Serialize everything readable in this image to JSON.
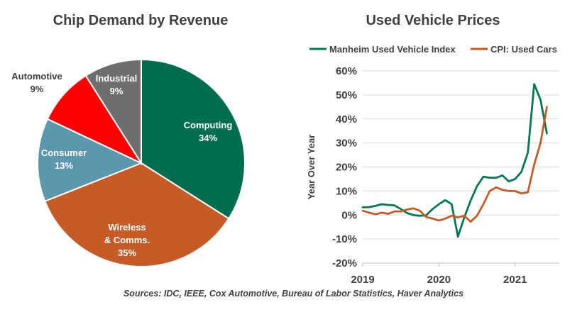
{
  "source": "Sources: IDC, IEEE, Cox Automotive, Bureau of Labor Statistics, Haver Analytics",
  "chart_data": [
    {
      "type": "pie",
      "title": "Chip Demand by Revenue",
      "slices": [
        {
          "label": "Computing",
          "pct_label": "34%",
          "value": 34,
          "color": "#006E4E"
        },
        {
          "label": "Wireless\n& Comms.",
          "pct_label": "35%",
          "value": 35,
          "color": "#C65B28"
        },
        {
          "label": "Consumer",
          "pct_label": "13%",
          "value": 13,
          "color": "#5B97AD"
        },
        {
          "label": "Automotive",
          "pct_label": "9%",
          "value": 9,
          "color": "#FF0000"
        },
        {
          "label": "Industrial",
          "pct_label": "9%",
          "value": 9,
          "color": "#6E6E6E"
        }
      ]
    },
    {
      "type": "line",
      "title": "Used Vehicle Prices",
      "ylabel": "Year Over Year",
      "ylim": [
        -20,
        60
      ],
      "yticks": [
        -20,
        -10,
        0,
        10,
        20,
        30,
        40,
        50,
        60
      ],
      "ytick_labels": [
        "-20%",
        "-10%",
        "0%",
        "10%",
        "20%",
        "30%",
        "40%",
        "50%",
        "60%"
      ],
      "xlim": [
        2019,
        2021.58
      ],
      "xticks": [
        2019,
        2020,
        2021
      ],
      "xtick_labels": [
        "2019",
        "2020",
        "2021"
      ],
      "legend_position": "top",
      "series": [
        {
          "name": "Manheim Used Vehicle Index",
          "color": "#007A4D",
          "x": [
            2019.0,
            2019.083,
            2019.167,
            2019.25,
            2019.333,
            2019.417,
            2019.5,
            2019.583,
            2019.667,
            2019.75,
            2019.833,
            2019.917,
            2020.0,
            2020.083,
            2020.167,
            2020.25,
            2020.333,
            2020.417,
            2020.5,
            2020.583,
            2020.667,
            2020.75,
            2020.833,
            2020.917,
            2021.0,
            2021.083,
            2021.167,
            2021.25,
            2021.333,
            2021.417
          ],
          "y": [
            3.2,
            3.3,
            3.8,
            4.5,
            4.2,
            4.0,
            2.5,
            0.8,
            0.0,
            -0.3,
            -0.1,
            2.5,
            4.5,
            6.2,
            4.5,
            -9.0,
            -1.0,
            6.0,
            12.0,
            16.0,
            15.5,
            15.5,
            16.5,
            14.0,
            15.0,
            18.0,
            26.0,
            54.5,
            48.0,
            34.0
          ]
        },
        {
          "name": "CPI: Used Cars",
          "color": "#C65B28",
          "x": [
            2019.0,
            2019.083,
            2019.167,
            2019.25,
            2019.333,
            2019.417,
            2019.5,
            2019.583,
            2019.667,
            2019.75,
            2019.833,
            2019.917,
            2020.0,
            2020.083,
            2020.167,
            2020.25,
            2020.333,
            2020.417,
            2020.5,
            2020.583,
            2020.667,
            2020.75,
            2020.833,
            2020.917,
            2021.0,
            2021.083,
            2021.167,
            2021.25,
            2021.333,
            2021.417
          ],
          "y": [
            1.8,
            1.0,
            0.3,
            1.0,
            0.5,
            1.5,
            1.5,
            2.3,
            2.8,
            1.8,
            -0.8,
            -1.5,
            -2.3,
            -1.5,
            -0.3,
            -1.0,
            -0.3,
            -2.8,
            -0.3,
            4.5,
            10.0,
            11.5,
            10.5,
            10.0,
            10.0,
            9.0,
            9.5,
            21.0,
            30.0,
            45.0
          ]
        }
      ]
    }
  ]
}
